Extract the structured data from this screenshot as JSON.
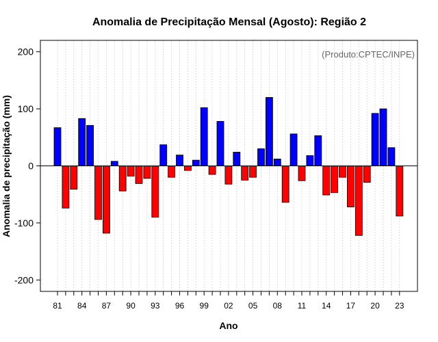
{
  "chart_data": {
    "type": "bar",
    "title": "Anomalia de Precipitação Mensal (Agosto): Região 2",
    "xlabel": "Ano",
    "ylabel": "Anomalia de precipitação (mm)",
    "annotation": "(Produto:CPTEC/INPE)",
    "ylim": [
      -220,
      220
    ],
    "yticks": [
      -200,
      -100,
      0,
      100,
      200
    ],
    "years": [
      1981,
      1982,
      1983,
      1984,
      1985,
      1986,
      1987,
      1988,
      1989,
      1990,
      1991,
      1992,
      1993,
      1994,
      1995,
      1996,
      1997,
      1998,
      1999,
      2000,
      2001,
      2002,
      2003,
      2004,
      2005,
      2006,
      2007,
      2008,
      2009,
      2010,
      2011,
      2012,
      2013,
      2014,
      2015,
      2016,
      2017,
      2018,
      2019,
      2020,
      2021,
      2022,
      2023
    ],
    "values": [
      67,
      -74,
      -41,
      83,
      71,
      -94,
      -118,
      8,
      -44,
      -18,
      -31,
      -22,
      -90,
      37,
      -20,
      19,
      -8,
      10,
      102,
      -15,
      78,
      -32,
      24,
      -25,
      -20,
      30,
      120,
      12,
      -64,
      56,
      -26,
      18,
      53,
      -51,
      -47,
      -20,
      -72,
      -122,
      -29,
      92,
      100,
      32,
      -88
    ],
    "xtick_labels": [
      "81",
      "84",
      "87",
      "90",
      "93",
      "96",
      "99",
      "02",
      "05",
      "08",
      "11",
      "14",
      "17",
      "20",
      "23"
    ],
    "xtick_years": [
      1981,
      1984,
      1987,
      1990,
      1993,
      1996,
      1999,
      2002,
      2005,
      2008,
      2011,
      2014,
      2017,
      2020,
      2023
    ],
    "grid": true,
    "colors": {
      "positive": "#0000ff",
      "negative": "#ff0000",
      "grid": "#d3d3d3",
      "annotation": "#666666"
    }
  }
}
